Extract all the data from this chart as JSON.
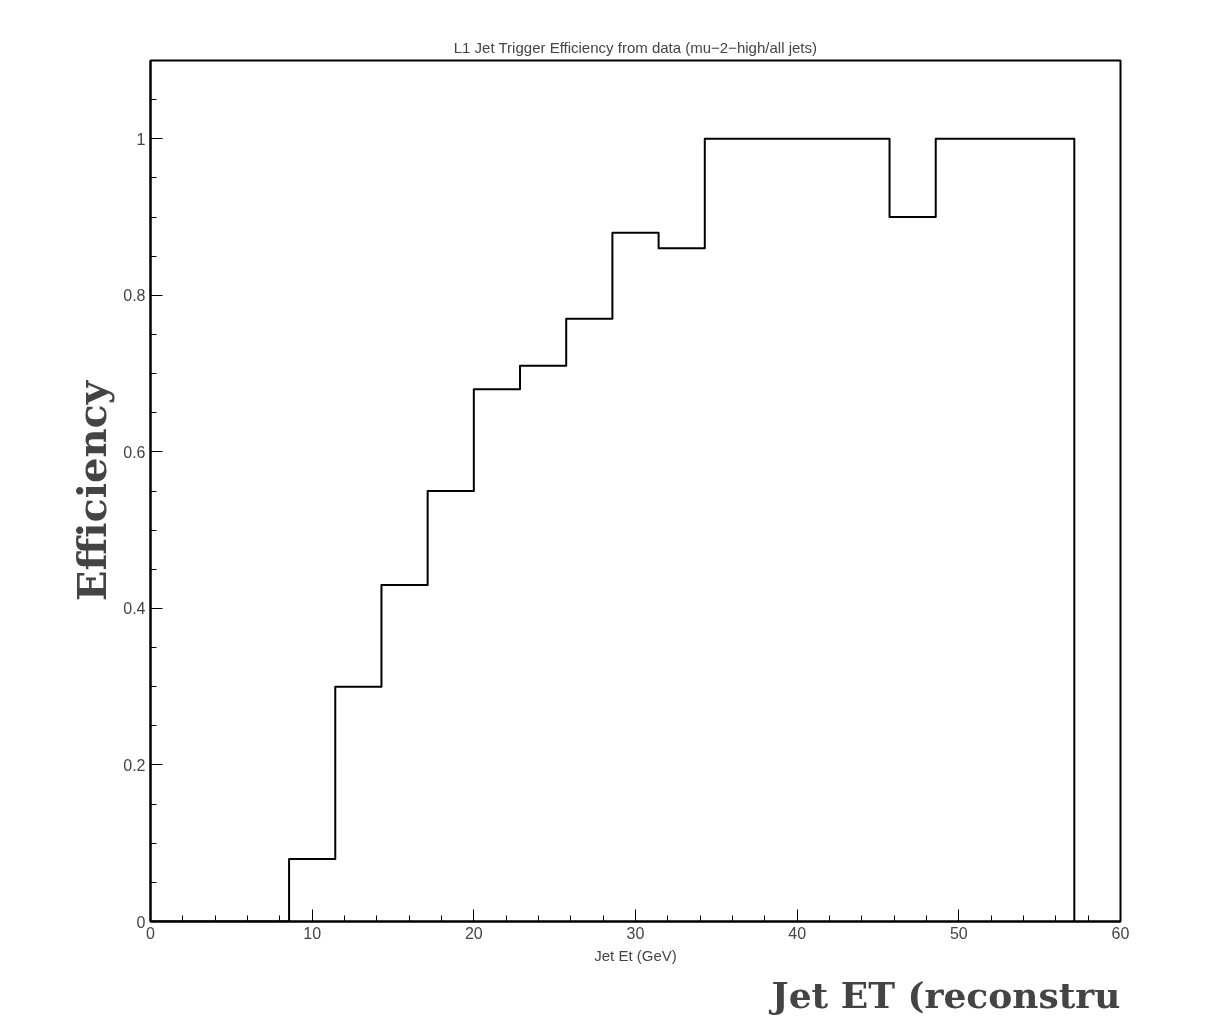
{
  "chart_data": {
    "type": "histogram",
    "title": "L1 Jet Trigger Efficiency from data (mu−2−high/all jets)",
    "xlabel": "Jet Et (GeV)",
    "ylabel": "Efficiency",
    "bins": [
      0,
      2.857,
      5.714,
      8.571,
      11.429,
      14.286,
      17.143,
      20.0,
      22.857,
      25.714,
      28.571,
      31.429,
      34.286,
      37.143,
      40.0,
      42.857,
      45.714,
      48.571,
      51.429,
      54.286,
      57.143
    ],
    "values": [
      0,
      0,
      0,
      0.08,
      0.3,
      0.43,
      0.55,
      0.68,
      0.71,
      0.77,
      0.88,
      0.86,
      1.0,
      1.0,
      1.0,
      1.0,
      0.9,
      1.0,
      1.0,
      1.0
    ],
    "color": "#000000",
    "xlim": [
      0,
      60
    ],
    "ylim": [
      0,
      1.1
    ],
    "xticks": [
      0,
      10,
      20,
      30,
      40,
      50,
      60
    ],
    "yticks": [
      0,
      0.2,
      0.4,
      0.6,
      0.8,
      1
    ],
    "grid": false,
    "annotations": [
      "Jet ET (reconstru"
    ]
  }
}
